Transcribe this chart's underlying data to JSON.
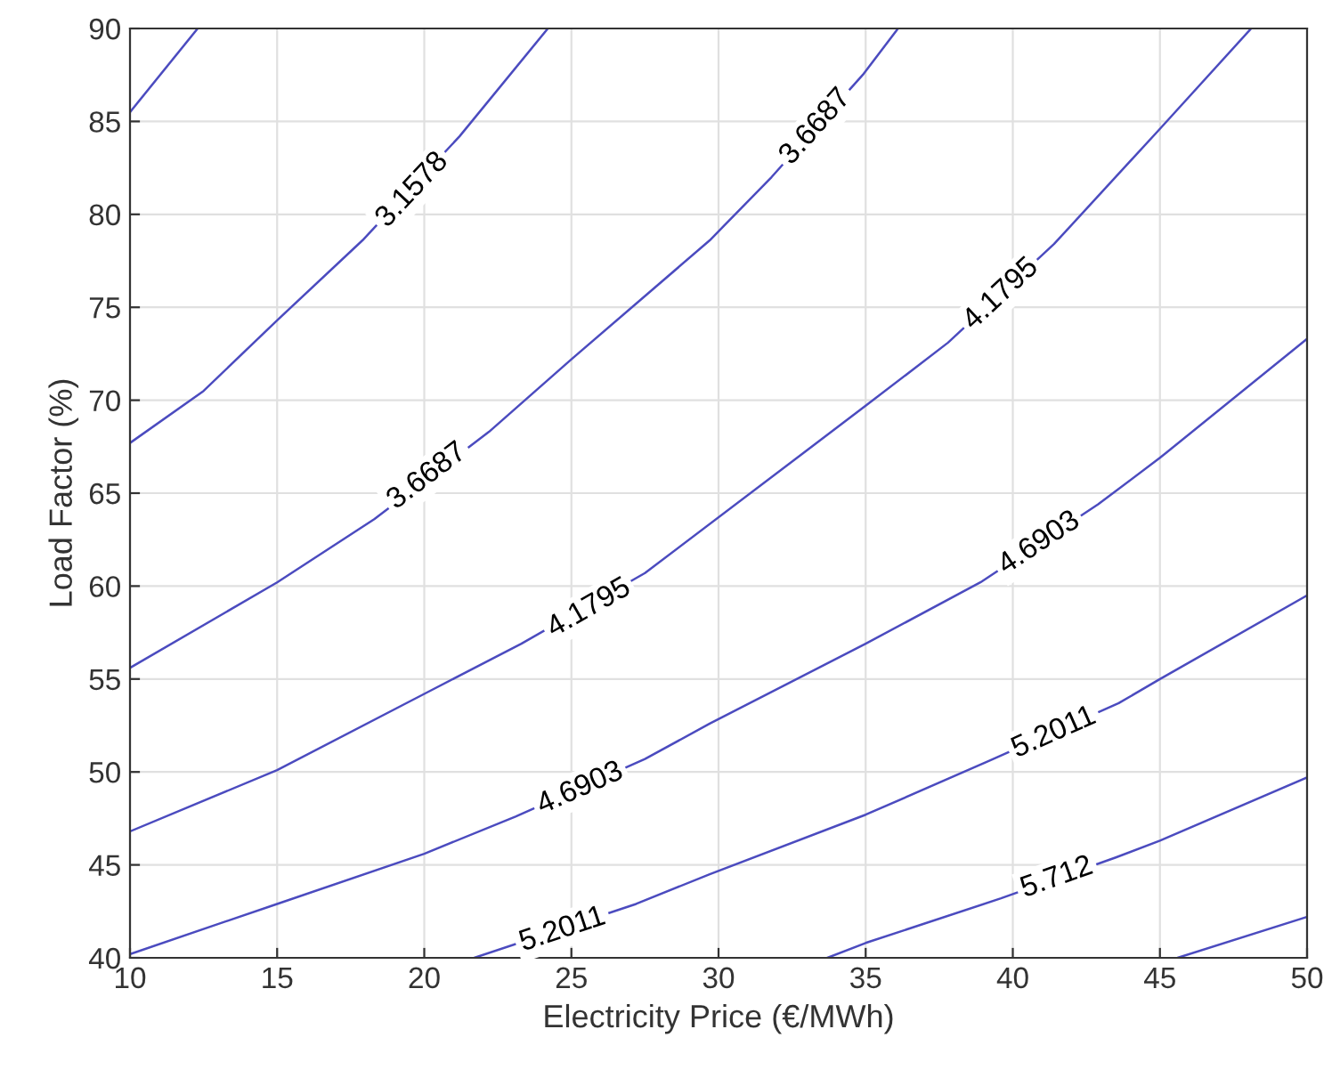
{
  "chart_data": {
    "type": "line",
    "xlabel": "Electricity Price (€/MWh)",
    "ylabel": "Load Factor (%)",
    "xlim": [
      10,
      50
    ],
    "ylim": [
      40,
      90
    ],
    "xticks": [
      10,
      15,
      20,
      25,
      30,
      35,
      40,
      45,
      50
    ],
    "yticks": [
      40,
      45,
      50,
      55,
      60,
      65,
      70,
      75,
      80,
      85,
      90
    ],
    "grid": true,
    "series": [
      {
        "color": "#4b4bbf",
        "x": [
          10,
          12.3
        ],
        "values": [
          85.5,
          90
        ]
      },
      {
        "color": "#4b4bbf",
        "x": [
          10,
          12.5,
          15,
          17.9,
          21.2,
          24.2
        ],
        "values": [
          67.7,
          70.5,
          74.3,
          78.6,
          84.2,
          90
        ]
      },
      {
        "color": "#4b4bbf",
        "x": [
          10,
          15,
          18.3,
          22.2,
          25,
          29.7,
          31.8,
          34.9,
          36.1
        ],
        "values": [
          55.6,
          60.2,
          63.6,
          68.3,
          72.2,
          78.6,
          82,
          87.5,
          90
        ]
      },
      {
        "color": "#4b4bbf",
        "x": [
          10,
          15,
          20,
          23.3,
          27.5,
          35,
          37.8,
          41.4,
          45,
          48.1
        ],
        "values": [
          46.8,
          50.1,
          54.2,
          56.9,
          60.7,
          69.7,
          73.1,
          78.4,
          84.6,
          90
        ]
      },
      {
        "color": "#4b4bbf",
        "x": [
          10,
          15,
          20,
          23.1,
          27.5,
          29.7,
          35,
          38.9,
          42.9,
          45,
          50
        ],
        "values": [
          40.2,
          42.9,
          45.6,
          47.6,
          50.7,
          52.6,
          56.9,
          60.2,
          64.4,
          66.9,
          73.3
        ]
      },
      {
        "color": "#4b4bbf",
        "x": [
          21.7,
          27.2,
          29.7,
          35,
          39.2,
          43.6,
          45,
          50
        ],
        "values": [
          40,
          42.9,
          44.5,
          47.7,
          50.6,
          53.7,
          55,
          59.5
        ]
      },
      {
        "color": "#4b4bbf",
        "x": [
          33.7,
          35,
          39.6,
          43.5,
          45,
          50
        ],
        "values": [
          40,
          40.8,
          43.2,
          45.4,
          46.3,
          49.7
        ]
      },
      {
        "color": "#4b4bbf",
        "x": [
          45.6,
          50
        ],
        "values": [
          40,
          42.2
        ]
      }
    ],
    "annotations": [
      {
        "text": "3.1578",
        "x": 19.6,
        "y": 81.3
      },
      {
        "text": "3.6687",
        "x": 20.1,
        "y": 65.9
      },
      {
        "text": "3.6687",
        "x": 33.3,
        "y": 84.7
      },
      {
        "text": "4.1795",
        "x": 25.6,
        "y": 58.8
      },
      {
        "text": "4.1795",
        "x": 39.6,
        "y": 75.7
      },
      {
        "text": "4.6903",
        "x": 25.3,
        "y": 49.1
      },
      {
        "text": "4.6903",
        "x": 40.9,
        "y": 62.3
      },
      {
        "text": "5.2011",
        "x": 24.7,
        "y": 41.5
      },
      {
        "text": "5.2011",
        "x": 41.4,
        "y": 52.1
      },
      {
        "text": "5.712",
        "x": 41.5,
        "y": 44.3
      }
    ]
  }
}
